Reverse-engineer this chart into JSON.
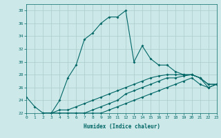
{
  "xlabel": "Humidex (Indice chaleur)",
  "background_color": "#cce8e8",
  "grid_color": "#aacccc",
  "line_color": "#006666",
  "xlim": [
    0,
    23
  ],
  "ylim": [
    22,
    39
  ],
  "xticks": [
    0,
    1,
    2,
    3,
    4,
    5,
    6,
    7,
    8,
    9,
    10,
    11,
    12,
    13,
    14,
    15,
    16,
    17,
    18,
    19,
    20,
    21,
    22,
    23
  ],
  "yticks": [
    22,
    24,
    26,
    28,
    30,
    32,
    34,
    36,
    38
  ],
  "line1_x": [
    0,
    1,
    2,
    3,
    4,
    5,
    6,
    7,
    8,
    9,
    10,
    11,
    12,
    13,
    14,
    15,
    16,
    17,
    18,
    19,
    20,
    21,
    22,
    23
  ],
  "line1_y": [
    24.5,
    23.0,
    22.0,
    22.0,
    24.0,
    27.5,
    29.5,
    33.5,
    34.5,
    36.0,
    37.0,
    37.0,
    38.0,
    30.0,
    32.5,
    30.5,
    29.5,
    29.5,
    28.5,
    28.0,
    28.0,
    27.5,
    26.0,
    26.5
  ],
  "line2_x": [
    2,
    3,
    4,
    5,
    6,
    7,
    8,
    9,
    10,
    11,
    12,
    13,
    14,
    15,
    16,
    17,
    18,
    19,
    20,
    21,
    22,
    23
  ],
  "line2_y": [
    22.0,
    22.0,
    22.0,
    22.0,
    22.0,
    22.0,
    22.0,
    22.0,
    22.5,
    23.0,
    23.5,
    24.0,
    24.5,
    25.0,
    25.5,
    26.0,
    26.5,
    27.0,
    27.5,
    26.5,
    26.0,
    26.5
  ],
  "line3_x": [
    2,
    3,
    4,
    5,
    6,
    7,
    8,
    9,
    10,
    11,
    12,
    13,
    14,
    15,
    16,
    17,
    18,
    19,
    20,
    21,
    22,
    23
  ],
  "line3_y": [
    22.0,
    22.0,
    22.0,
    22.0,
    22.0,
    22.0,
    22.5,
    23.0,
    23.5,
    24.0,
    25.0,
    25.5,
    26.0,
    26.5,
    27.0,
    27.5,
    27.5,
    27.8,
    28.0,
    27.5,
    26.5,
    26.5
  ],
  "line4_x": [
    2,
    3,
    4,
    5,
    6,
    7,
    8,
    9,
    10,
    11,
    12,
    13,
    14,
    15,
    16,
    17,
    18,
    19,
    20,
    21,
    22,
    23
  ],
  "line4_y": [
    22.0,
    22.0,
    22.5,
    22.5,
    23.0,
    23.5,
    24.0,
    24.5,
    25.0,
    25.5,
    26.0,
    26.5,
    27.0,
    27.5,
    27.8,
    28.0,
    28.0,
    28.0,
    28.0,
    27.5,
    26.5,
    26.5
  ]
}
